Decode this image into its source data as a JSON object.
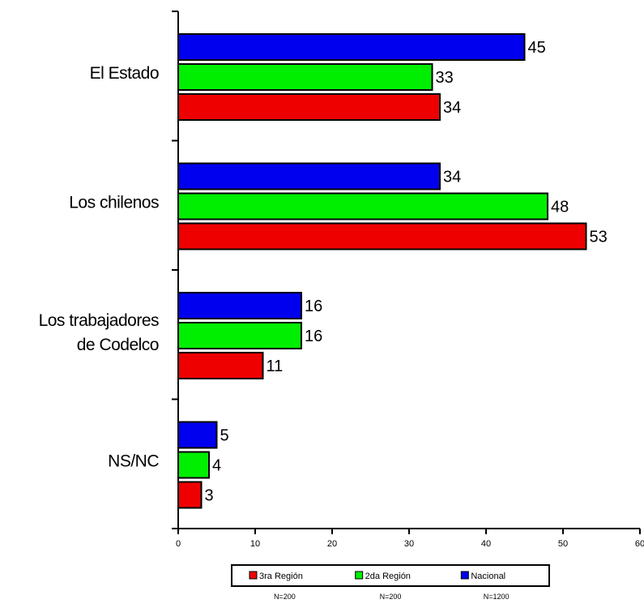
{
  "chart_data": {
    "type": "bar",
    "orientation": "horizontal",
    "categories": [
      "El Estado",
      "Los chilenos",
      "Los trabajadores de Codelco",
      "NS/NC"
    ],
    "series": [
      {
        "name": "Nacional",
        "color": "#0000ee",
        "values": [
          45,
          34,
          16,
          5
        ]
      },
      {
        "name": "2da Región",
        "color": "#00ee00",
        "values": [
          33,
          48,
          16,
          4
        ]
      },
      {
        "name": "3ra Región",
        "color": "#ee0000",
        "values": [
          34,
          53,
          11,
          3
        ]
      }
    ],
    "xlim": [
      0,
      60
    ],
    "xticks": [
      0,
      10,
      20,
      30,
      40,
      50,
      60
    ],
    "legend": {
      "placement": "bottom",
      "order": [
        "3ra Región",
        "2da Región",
        "Nacional"
      ],
      "sample_sizes": [
        "N=200",
        "N=200",
        "N=1200"
      ]
    },
    "title": "",
    "xlabel": "",
    "ylabel": "",
    "grid": false
  }
}
